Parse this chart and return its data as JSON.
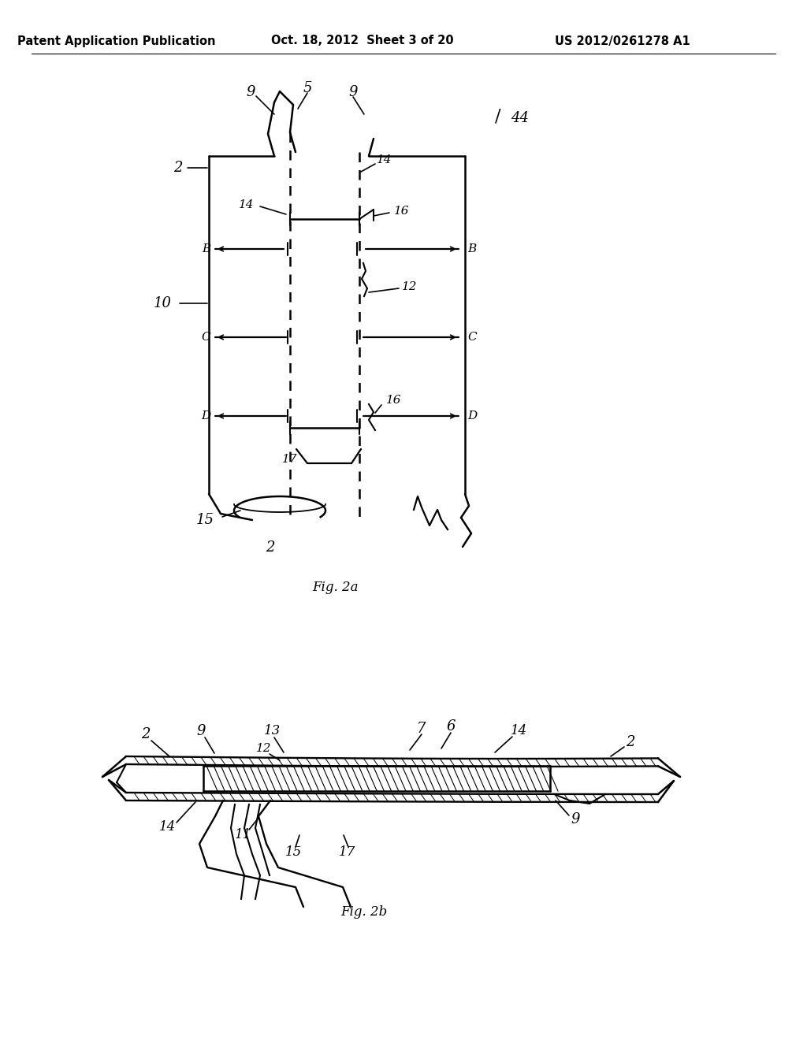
{
  "background_color": "#ffffff",
  "header_left": "Patent Application Publication",
  "header_mid": "Oct. 18, 2012  Sheet 3 of 20",
  "header_right": "US 2012/0261278 A1",
  "fig2a_caption": "Fig. 2a",
  "fig2b_caption": "Fig. 2b",
  "caption_fontsize": 12,
  "header_fontsize": 10.5
}
